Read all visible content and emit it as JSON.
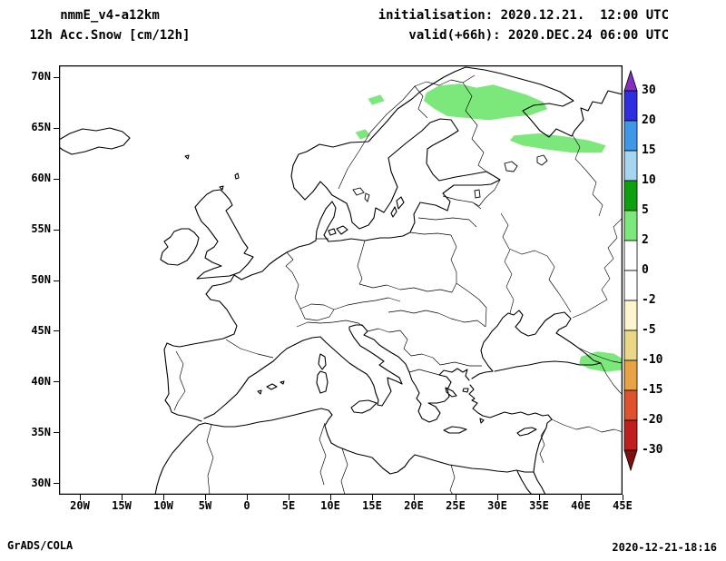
{
  "header": {
    "model": "nmmE_v4-a12km",
    "field": "12h Acc.Snow [cm/12h]",
    "init_line": "initialisation: 2020.12.21.  12:00 UTC",
    "valid_line": "valid(+66h): 2020.DEC.24 06:00 UTC"
  },
  "footer": {
    "left": "GrADS/COLA",
    "right": "2020-12-21-18:16"
  },
  "chart_data": {
    "type": "heatmap",
    "title": "12h Acc.Snow [cm/12h]",
    "model_run": "nmmE_v4-a12km",
    "initialisation": "2020.12.21. 12:00 UTC",
    "valid": "2020.DEC.24 06:00 UTC (+66h)",
    "units": "cm/12h",
    "projection": "latlon",
    "lon_range": [
      -22.5,
      45
    ],
    "lat_range": [
      28.9,
      71.2
    ],
    "grid": false,
    "x_ticks": [
      {
        "label": "20W",
        "value": -20
      },
      {
        "label": "15W",
        "value": -15
      },
      {
        "label": "10W",
        "value": -10
      },
      {
        "label": "5W",
        "value": -5
      },
      {
        "label": "0",
        "value": 0
      },
      {
        "label": "5E",
        "value": 5
      },
      {
        "label": "10E",
        "value": 10
      },
      {
        "label": "15E",
        "value": 15
      },
      {
        "label": "20E",
        "value": 20
      },
      {
        "label": "25E",
        "value": 25
      },
      {
        "label": "30E",
        "value": 30
      },
      {
        "label": "35E",
        "value": 35
      },
      {
        "label": "40E",
        "value": 40
      },
      {
        "label": "45E",
        "value": 45
      }
    ],
    "y_ticks": [
      {
        "label": "70N",
        "value": 70
      },
      {
        "label": "65N",
        "value": 65
      },
      {
        "label": "60N",
        "value": 60
      },
      {
        "label": "55N",
        "value": 55
      },
      {
        "label": "50N",
        "value": 50
      },
      {
        "label": "45N",
        "value": 45
      },
      {
        "label": "40N",
        "value": 40
      },
      {
        "label": "35N",
        "value": 35
      },
      {
        "label": "30N",
        "value": 30
      }
    ],
    "colorbar": {
      "position": "right",
      "levels": [
        30,
        20,
        15,
        10,
        5,
        2,
        0,
        -2,
        -5,
        -10,
        -15,
        -20,
        -30
      ],
      "segment_colors": [
        "#2e2ee0",
        "#3f97e8",
        "#a5d5f0",
        "#0fa00f",
        "#7ce87c",
        "#ffffff",
        "#ffffff",
        "#fdf5d0",
        "#ead787",
        "#e8a444",
        "#e0522e",
        "#bf1f1f"
      ],
      "over_color": "#8330bf",
      "under_color": "#7f0f0f"
    },
    "snow_shading": {
      "color": "#7ce87c",
      "value_range": [
        2,
        5
      ],
      "regions": [
        {
          "name": "northern-scandinavia-finland",
          "polygon": [
            [
              21.5,
              68.5
            ],
            [
              23,
              69.2
            ],
            [
              25.5,
              69.4
            ],
            [
              27.5,
              69.0
            ],
            [
              29.5,
              69.3
            ],
            [
              31.5,
              68.8
            ],
            [
              33.5,
              68.3
            ],
            [
              35.5,
              67.6
            ],
            [
              36,
              66.9
            ],
            [
              34,
              66.3
            ],
            [
              31.5,
              66.1
            ],
            [
              29,
              65.8
            ],
            [
              26.5,
              66.0
            ],
            [
              24,
              66.2
            ],
            [
              22.5,
              66.9
            ],
            [
              21.2,
              67.7
            ]
          ]
        },
        {
          "name": "nw-russia-band",
          "polygon": [
            [
              32,
              64.3
            ],
            [
              35,
              64.5
            ],
            [
              38,
              64.2
            ],
            [
              41,
              63.8
            ],
            [
              43,
              63.3
            ],
            [
              42.5,
              62.6
            ],
            [
              39,
              62.6
            ],
            [
              36,
              62.9
            ],
            [
              33,
              63.3
            ],
            [
              31.5,
              63.8
            ]
          ]
        },
        {
          "name": "norway-coast-south",
          "polygon": [
            [
              13,
              64.6
            ],
            [
              14.2,
              64.9
            ],
            [
              14.8,
              64.3
            ],
            [
              13.6,
              63.9
            ]
          ]
        },
        {
          "name": "norway-coast-north",
          "polygon": [
            [
              14.5,
              67.9
            ],
            [
              16,
              68.3
            ],
            [
              16.5,
              67.7
            ],
            [
              15,
              67.3
            ]
          ]
        },
        {
          "name": "caucasus-east-turkey",
          "polygon": [
            [
              40,
              42.5
            ],
            [
              42,
              43.0
            ],
            [
              44,
              42.8
            ],
            [
              45,
              42.3
            ],
            [
              45,
              41.2
            ],
            [
              43,
              41.0
            ],
            [
              41,
              41.3
            ],
            [
              39.8,
              41.8
            ]
          ]
        }
      ]
    }
  }
}
